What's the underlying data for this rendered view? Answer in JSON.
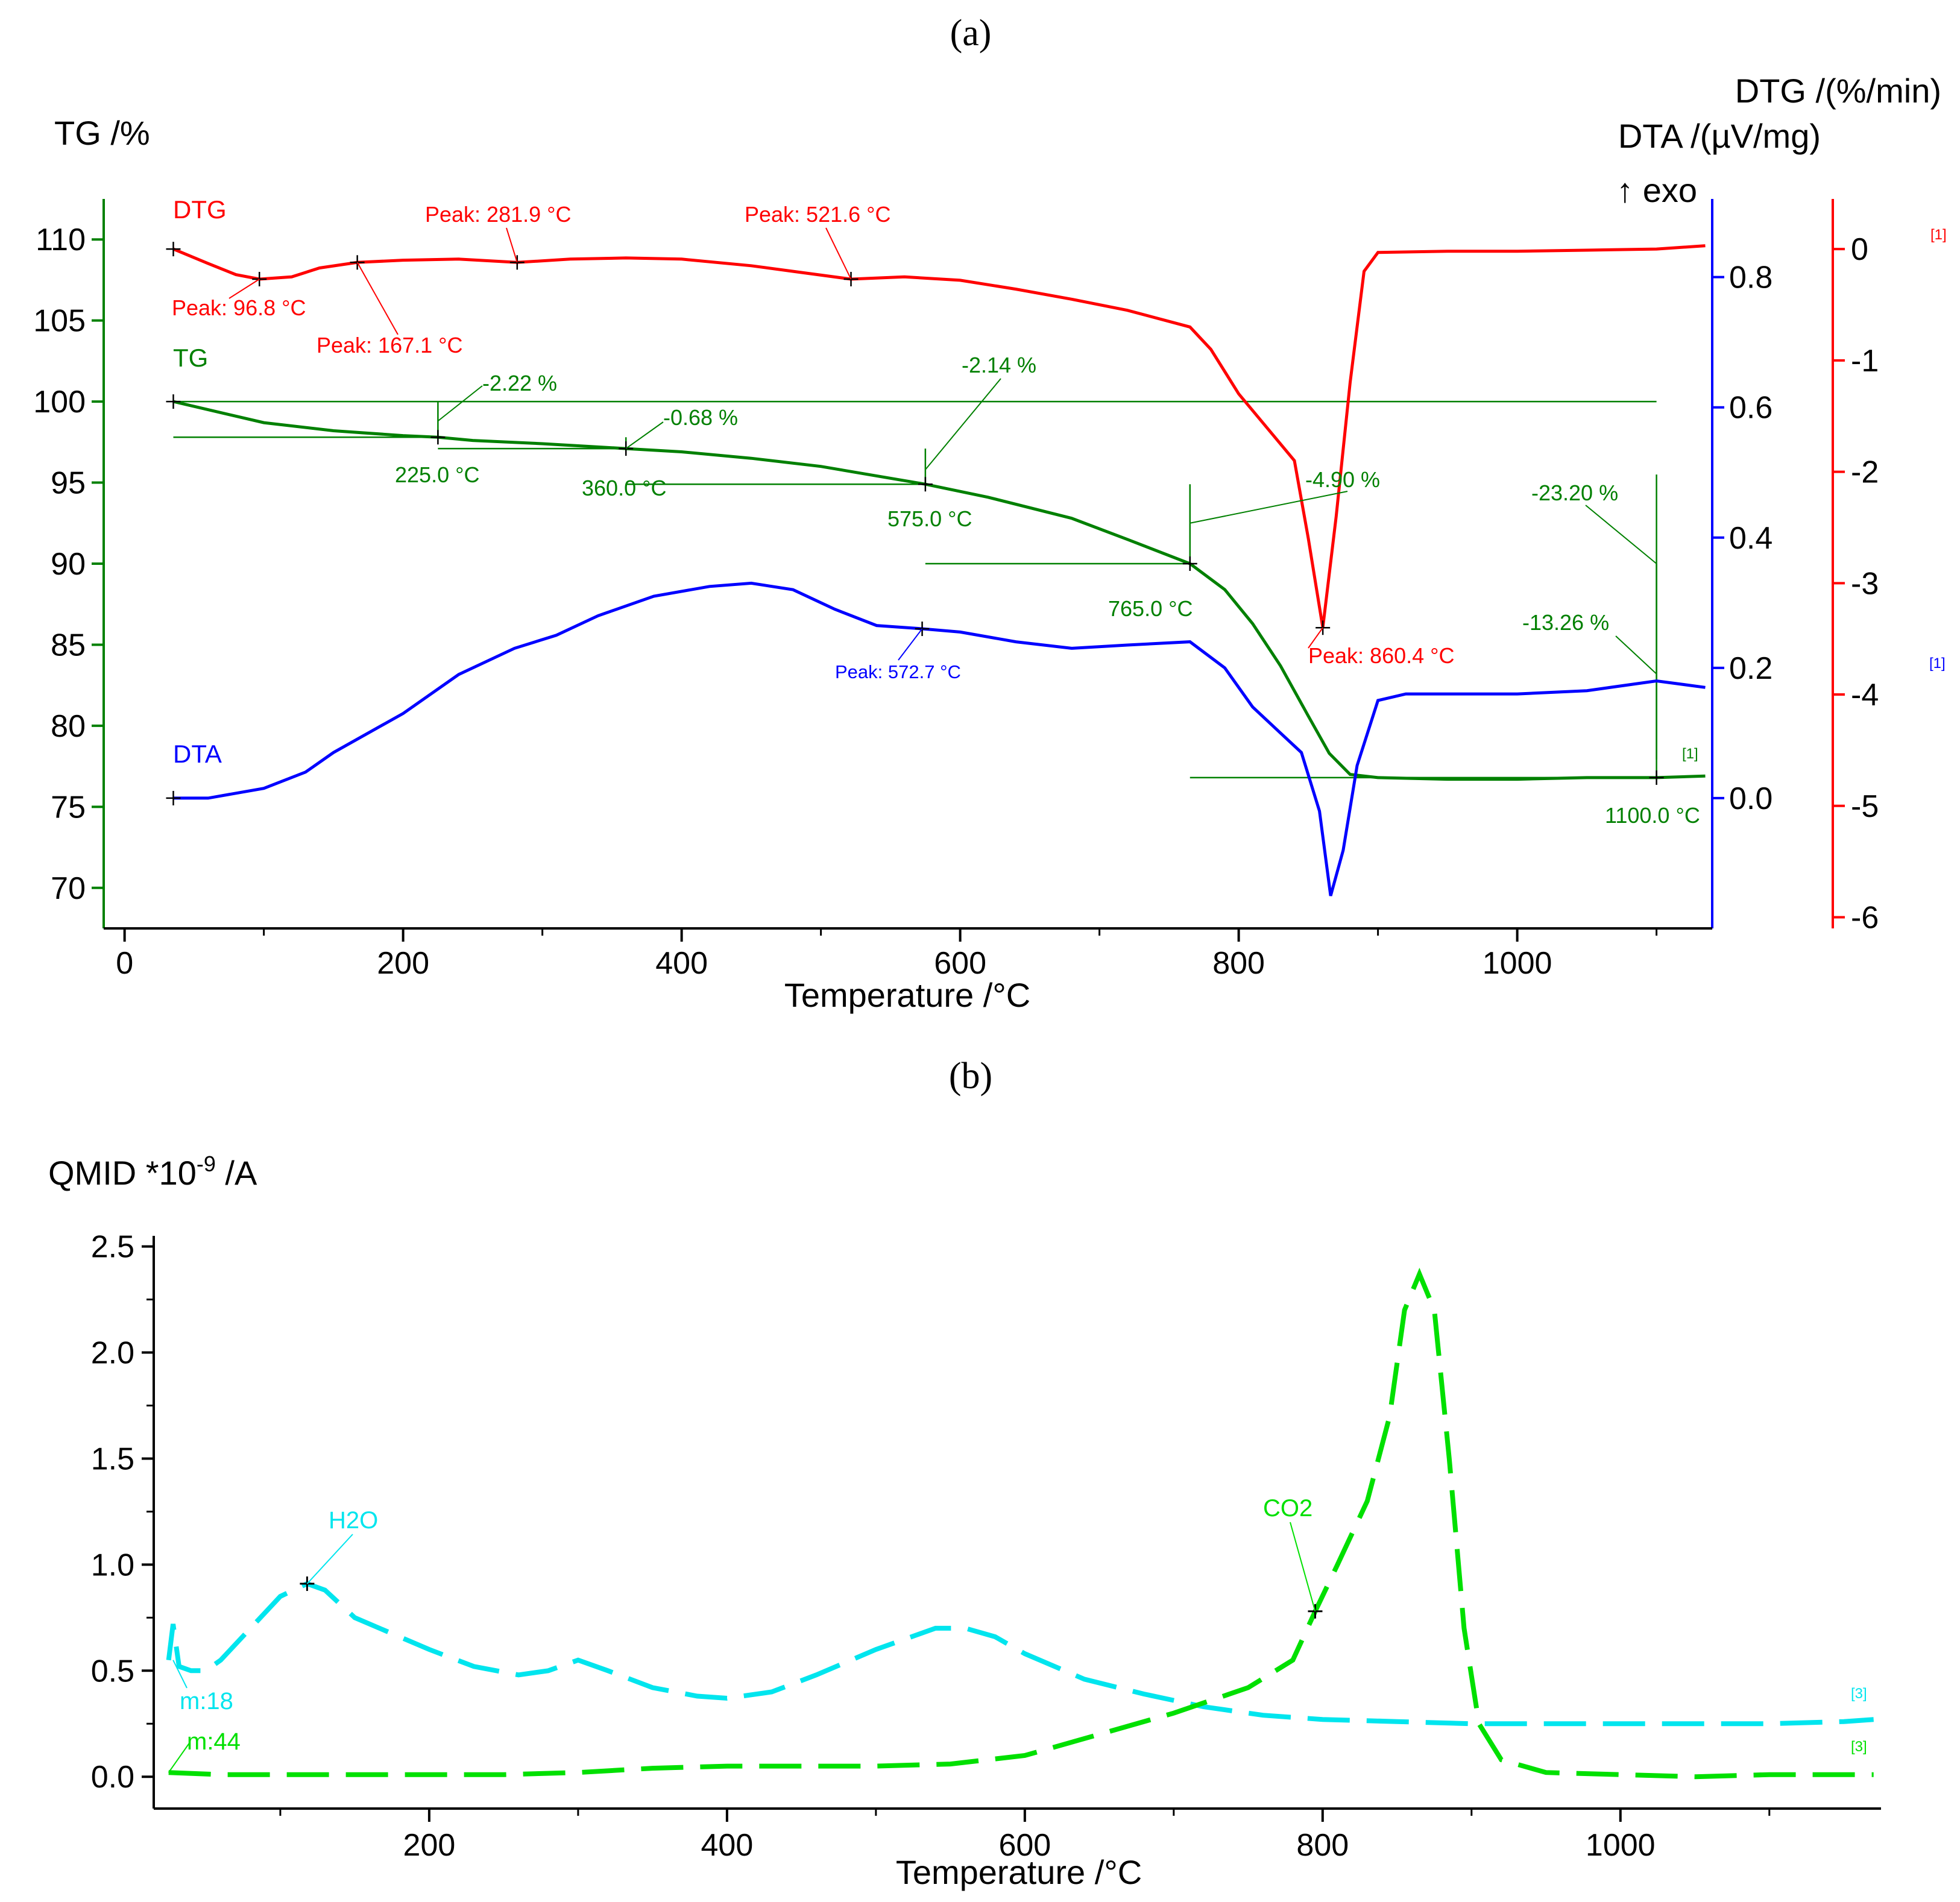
{
  "figure": {
    "panel_a_label": "(a)",
    "panel_b_label": "(b)"
  },
  "colors": {
    "tg": "#008000",
    "dtg": "#ff0000",
    "dta": "#0000ff",
    "h2o": "#00e5ee",
    "co2": "#00e000",
    "axis": "#000000"
  },
  "chart_data": [
    {
      "id": "a",
      "type": "line",
      "title": "",
      "xlabel": "Temperature /°C",
      "x_range": [
        -15,
        1140
      ],
      "x_ticks": [
        0,
        200,
        400,
        600,
        800,
        1000
      ],
      "y_left": {
        "label": "TG /%",
        "range": [
          67.5,
          112.5
        ],
        "ticks": [
          70,
          75,
          80,
          85,
          90,
          95,
          100,
          105,
          110
        ]
      },
      "y_right_dta": {
        "label": "DTA /(µV/mg)",
        "exo_label": "↑ exo",
        "range": [
          -0.2,
          0.92
        ],
        "ticks": [
          0.0,
          0.2,
          0.4,
          0.6,
          0.8
        ]
      },
      "y_right_dtg": {
        "label": "DTG /(%/min)",
        "range": [
          -6.1,
          0.45
        ],
        "ticks": [
          0,
          -1,
          -2,
          -3,
          -4,
          -5,
          -6
        ]
      },
      "series": [
        {
          "name": "TG",
          "axis": "tg",
          "x": [
            35,
            60,
            100,
            150,
            200,
            225,
            250,
            300,
            360,
            400,
            450,
            500,
            575,
            620,
            680,
            720,
            765,
            790,
            810,
            830,
            850,
            865,
            880,
            900,
            950,
            1000,
            1050,
            1100,
            1135
          ],
          "values": [
            100.0,
            99.5,
            98.7,
            98.2,
            97.9,
            97.8,
            97.6,
            97.4,
            97.1,
            96.9,
            96.5,
            96.0,
            94.9,
            94.1,
            92.8,
            91.5,
            90.0,
            88.4,
            86.3,
            83.7,
            80.6,
            78.3,
            77.0,
            76.8,
            76.7,
            76.7,
            76.8,
            76.8,
            76.9
          ]
        },
        {
          "name": "DTG",
          "axis": "dtg",
          "x": [
            35,
            60,
            80,
            96.8,
            120,
            140,
            167.1,
            200,
            240,
            281.9,
            320,
            360,
            400,
            450,
            480,
            521.6,
            560,
            600,
            640,
            680,
            720,
            765,
            780,
            800,
            820,
            840,
            850,
            860.4,
            870,
            880,
            890,
            900,
            950,
            1000,
            1050,
            1100,
            1135
          ],
          "values": [
            0.0,
            -0.13,
            -0.23,
            -0.27,
            -0.25,
            -0.17,
            -0.12,
            -0.1,
            -0.09,
            -0.12,
            -0.09,
            -0.08,
            -0.09,
            -0.15,
            -0.2,
            -0.27,
            -0.25,
            -0.28,
            -0.36,
            -0.45,
            -0.55,
            -0.7,
            -0.9,
            -1.3,
            -1.6,
            -1.9,
            -2.6,
            -3.4,
            -2.4,
            -1.2,
            -0.2,
            -0.03,
            -0.02,
            -0.02,
            -0.01,
            0.0,
            0.03
          ]
        },
        {
          "name": "DTA",
          "axis": "dta",
          "x": [
            35,
            60,
            100,
            130,
            150,
            200,
            240,
            280,
            310,
            340,
            380,
            420,
            450,
            480,
            510,
            540,
            572.7,
            600,
            640,
            680,
            720,
            765,
            790,
            810,
            830,
            845,
            858,
            866,
            875,
            885,
            900,
            920,
            960,
            1000,
            1050,
            1100,
            1135
          ],
          "values": [
            0.0,
            0.0,
            0.015,
            0.04,
            0.07,
            0.13,
            0.19,
            0.23,
            0.25,
            0.28,
            0.31,
            0.325,
            0.33,
            0.32,
            0.29,
            0.265,
            0.26,
            0.255,
            0.24,
            0.23,
            0.235,
            0.24,
            0.2,
            0.14,
            0.1,
            0.07,
            -0.02,
            -0.15,
            -0.08,
            0.05,
            0.15,
            0.16,
            0.16,
            0.16,
            0.165,
            0.18,
            0.17
          ]
        }
      ],
      "annotations": [
        {
          "text": "-2.22 %",
          "series": "TG"
        },
        {
          "text": "225.0 °C",
          "series": "TG"
        },
        {
          "text": "-0.68 %",
          "series": "TG"
        },
        {
          "text": "360.0 °C",
          "series": "TG"
        },
        {
          "text": "-2.14 %",
          "series": "TG"
        },
        {
          "text": "575.0 °C",
          "series": "TG"
        },
        {
          "text": "-4.90 %",
          "series": "TG"
        },
        {
          "text": "765.0 °C",
          "series": "TG"
        },
        {
          "text": "-23.20 %",
          "series": "TG"
        },
        {
          "text": "-13.26 %",
          "series": "TG"
        },
        {
          "text": "1100.0 °C",
          "series": "TG"
        },
        {
          "text": "Peak: 96.8 °C",
          "series": "DTG"
        },
        {
          "text": "Peak: 167.1 °C",
          "series": "DTG"
        },
        {
          "text": "Peak: 281.9 °C",
          "series": "DTG"
        },
        {
          "text": "Peak: 521.6 °C",
          "series": "DTG"
        },
        {
          "text": "Peak: 860.4 °C",
          "series": "DTG"
        },
        {
          "text": "Peak: 572.7 °C",
          "series": "DTA"
        }
      ],
      "curve_labels": [
        "DTG",
        "TG",
        "DTA"
      ],
      "segment_tags": [
        "[1]",
        "[1]",
        "[1]"
      ]
    },
    {
      "id": "b",
      "type": "line",
      "title": "",
      "xlabel": "Temperature /°C",
      "ylabel": "QMID *10",
      "ylabel_exp": "-9",
      "ylabel_unit": " /A",
      "x_range": [
        15,
        1175
      ],
      "x_ticks": [
        200,
        400,
        600,
        800,
        1000
      ],
      "y_range": [
        -0.15,
        2.55
      ],
      "y_ticks": [
        0.0,
        0.5,
        1.0,
        1.5,
        2.0,
        2.5
      ],
      "series": [
        {
          "name": "H2O",
          "mass": "m:18",
          "x": [
            25,
            28,
            32,
            40,
            50,
            60,
            80,
            100,
            118,
            130,
            150,
            180,
            200,
            230,
            260,
            280,
            300,
            320,
            350,
            380,
            400,
            430,
            460,
            500,
            540,
            560,
            580,
            600,
            640,
            680,
            720,
            760,
            800,
            850,
            900,
            950,
            1000,
            1050,
            1100,
            1150,
            1170
          ],
          "values": [
            0.55,
            0.72,
            0.52,
            0.5,
            0.5,
            0.55,
            0.7,
            0.85,
            0.91,
            0.88,
            0.75,
            0.66,
            0.6,
            0.52,
            0.48,
            0.5,
            0.55,
            0.5,
            0.42,
            0.38,
            0.37,
            0.4,
            0.48,
            0.6,
            0.7,
            0.7,
            0.66,
            0.58,
            0.46,
            0.39,
            0.33,
            0.29,
            0.27,
            0.26,
            0.25,
            0.25,
            0.25,
            0.25,
            0.25,
            0.26,
            0.27
          ]
        },
        {
          "name": "CO2",
          "mass": "m:44",
          "x": [
            25,
            60,
            100,
            150,
            200,
            250,
            300,
            350,
            400,
            450,
            500,
            550,
            600,
            650,
            700,
            750,
            780,
            795,
            810,
            830,
            845,
            855,
            865,
            875,
            885,
            895,
            905,
            920,
            950,
            1000,
            1050,
            1100,
            1150,
            1170
          ],
          "values": [
            0.02,
            0.01,
            0.01,
            0.01,
            0.01,
            0.01,
            0.02,
            0.04,
            0.05,
            0.05,
            0.05,
            0.06,
            0.1,
            0.2,
            0.3,
            0.42,
            0.55,
            0.78,
            1.0,
            1.3,
            1.7,
            2.2,
            2.37,
            2.2,
            1.5,
            0.7,
            0.25,
            0.08,
            0.02,
            0.01,
            0.0,
            0.01,
            0.01,
            0.01
          ]
        }
      ],
      "curve_labels": [
        "H2O",
        "CO2",
        "m:18",
        "m:44"
      ],
      "segment_tags": [
        "[3]",
        "[3]"
      ]
    }
  ]
}
